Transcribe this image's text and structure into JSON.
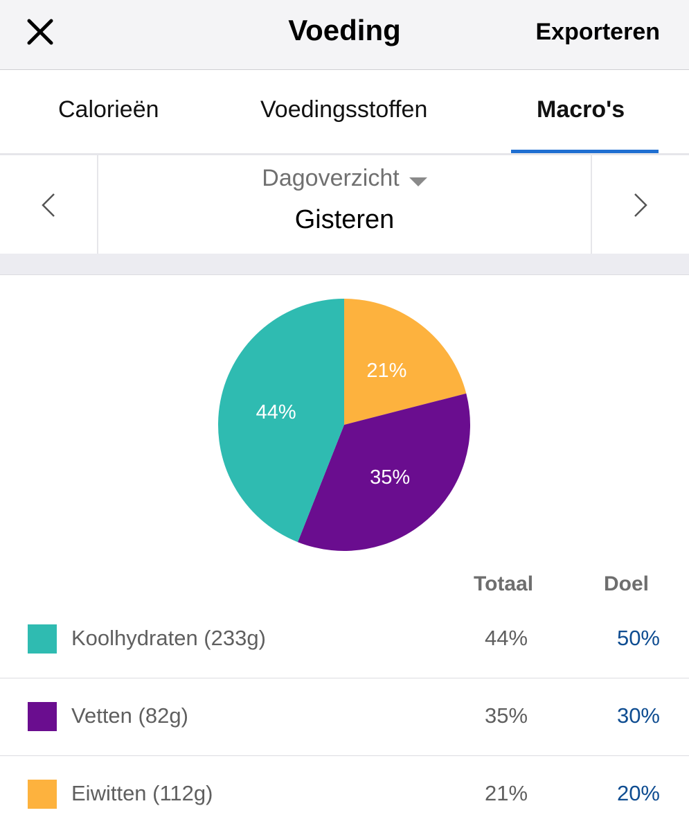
{
  "header": {
    "title": "Voeding",
    "export_label": "Exporteren",
    "close_icon": "close-icon"
  },
  "tabs": [
    {
      "label": "Calorieën",
      "active": false
    },
    {
      "label": "Voedingsstoffen",
      "active": false
    },
    {
      "label": "Macro's",
      "active": true
    }
  ],
  "date_nav": {
    "period": "Dagoverzicht",
    "date": "Gisteren",
    "prev_icon": "chevron-left-icon",
    "next_icon": "chevron-right-icon",
    "caret_icon": "caret-down-icon"
  },
  "colors": {
    "accent": "#1f6fd1",
    "goal_text": "#0f4d91",
    "carbs": "#2fbbb1",
    "fat": "#6a0d8f",
    "protein": "#fdb23e"
  },
  "chart_data": {
    "type": "pie",
    "slices": [
      {
        "label": "Eiwitten",
        "value": 21,
        "display": "21%",
        "color": "#fdb23e"
      },
      {
        "label": "Vetten",
        "value": 35,
        "display": "35%",
        "color": "#6a0d8f"
      },
      {
        "label": "Koolhydraten",
        "value": 44,
        "display": "44%",
        "color": "#2fbbb1"
      }
    ]
  },
  "table": {
    "headers": {
      "total": "Totaal",
      "goal": "Doel"
    },
    "rows": [
      {
        "label": "Koolhydraten (233g)",
        "total": "44%",
        "goal": "50%",
        "color": "#2fbbb1"
      },
      {
        "label": "Vetten (82g)",
        "total": "35%",
        "goal": "30%",
        "color": "#6a0d8f"
      },
      {
        "label": "Eiwitten (112g)",
        "total": "21%",
        "goal": "20%",
        "color": "#fdb23e"
      }
    ]
  }
}
